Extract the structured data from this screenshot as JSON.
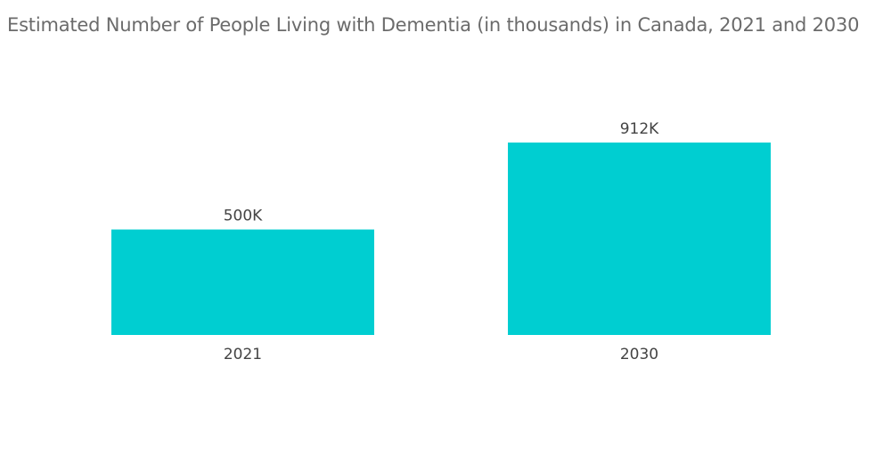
{
  "chart_data": {
    "type": "bar",
    "title": "Estimated Number of People Living with Dementia (in thousands) in Canada, 2021 and 2030",
    "categories": [
      "2021",
      "2030"
    ],
    "values": [
      500,
      912
    ],
    "data_labels": [
      "500K",
      "912K"
    ],
    "xlabel": "",
    "ylabel": "",
    "ylim": [
      0,
      1000
    ],
    "grid": false,
    "legend": "none",
    "bar_color": "#00ced1"
  }
}
